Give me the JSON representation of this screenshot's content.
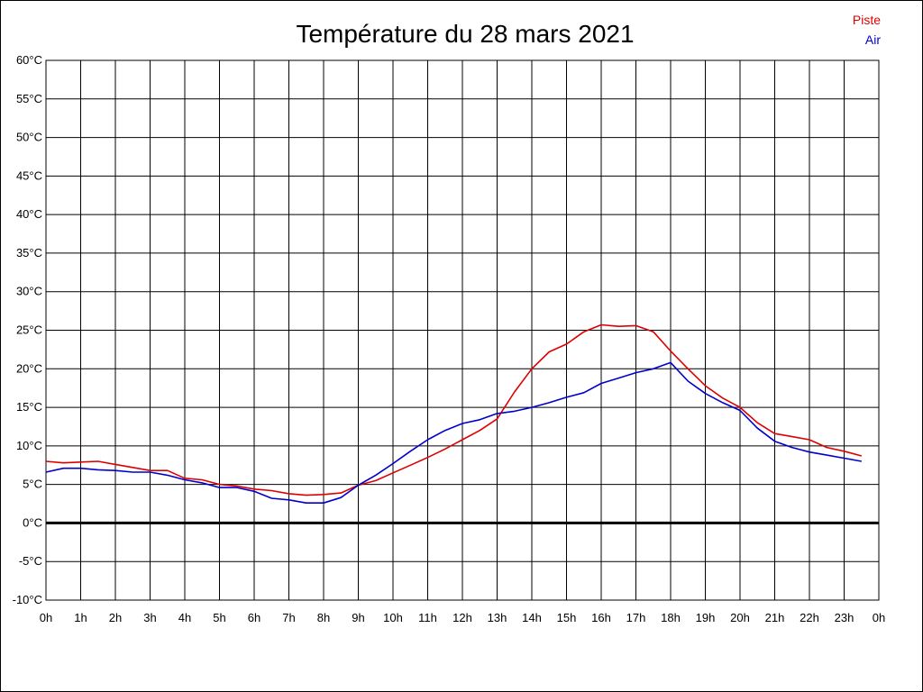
{
  "chart_data": {
    "type": "line",
    "title": "Température du 28 mars 2021",
    "xlabel": "",
    "ylabel": "",
    "x_tick_labels": [
      "0h",
      "1h",
      "2h",
      "3h",
      "4h",
      "5h",
      "6h",
      "7h",
      "8h",
      "9h",
      "10h",
      "11h",
      "12h",
      "13h",
      "14h",
      "15h",
      "16h",
      "17h",
      "18h",
      "19h",
      "20h",
      "21h",
      "22h",
      "23h",
      "0h"
    ],
    "y_tick_labels": [
      "60°C",
      "55°C",
      "50°C",
      "45°C",
      "40°C",
      "35°C",
      "30°C",
      "25°C",
      "20°C",
      "15°C",
      "10°C",
      "5°C",
      "0°C",
      "-5°C",
      "-10°C"
    ],
    "xlim": [
      0,
      24
    ],
    "ylim": [
      -10,
      60
    ],
    "grid": true,
    "zero_line": true,
    "legend_position": "top-right",
    "series": [
      {
        "name": "Piste",
        "color": "#dd0000",
        "x": [
          0,
          0.5,
          1,
          1.5,
          2,
          2.5,
          3,
          3.5,
          4,
          4.5,
          5,
          5.5,
          6,
          6.5,
          7,
          7.5,
          8,
          8.5,
          9,
          9.5,
          10,
          10.5,
          11,
          11.5,
          12,
          12.5,
          13,
          13.5,
          14,
          14.5,
          15,
          15.5,
          16,
          16.5,
          17,
          17.5,
          18,
          18.5,
          19,
          19.5,
          20,
          20.5,
          21,
          21.5,
          22,
          22.5,
          23,
          23.5
        ],
        "values": [
          8.0,
          7.8,
          7.9,
          8.0,
          7.6,
          7.2,
          6.8,
          6.8,
          5.8,
          5.6,
          5.0,
          4.8,
          4.4,
          4.2,
          3.8,
          3.6,
          3.7,
          3.9,
          4.9,
          5.5,
          6.5,
          7.5,
          8.5,
          9.6,
          10.8,
          12.0,
          13.5,
          17.0,
          20.0,
          22.2,
          23.2,
          24.8,
          25.7,
          25.5,
          25.6,
          24.8,
          22.3,
          20.0,
          17.8,
          16.2,
          15.0,
          13.0,
          11.6,
          11.2,
          10.8,
          9.8,
          9.3,
          8.7
        ]
      },
      {
        "name": "Air",
        "color": "#0000cc",
        "x": [
          0,
          0.5,
          1,
          1.5,
          2,
          2.5,
          3,
          3.5,
          4,
          4.5,
          5,
          5.5,
          6,
          6.5,
          7,
          7.5,
          8,
          8.5,
          9,
          9.5,
          10,
          10.5,
          11,
          11.5,
          12,
          12.5,
          13,
          13.5,
          14,
          14.5,
          15,
          15.5,
          16,
          16.5,
          17,
          17.5,
          18,
          18.5,
          19,
          19.5,
          20,
          20.5,
          21,
          21.5,
          22,
          22.5,
          23,
          23.5
        ],
        "values": [
          6.6,
          7.1,
          7.1,
          6.9,
          6.8,
          6.6,
          6.6,
          6.2,
          5.6,
          5.2,
          4.6,
          4.6,
          4.1,
          3.2,
          3.0,
          2.6,
          2.6,
          3.3,
          4.9,
          6.2,
          7.7,
          9.3,
          10.8,
          12.0,
          12.9,
          13.4,
          14.2,
          14.5,
          15.0,
          15.6,
          16.3,
          16.9,
          18.1,
          18.8,
          19.5,
          20.0,
          20.8,
          18.4,
          16.8,
          15.6,
          14.6,
          12.3,
          10.6,
          9.8,
          9.2,
          8.8,
          8.4,
          8.0
        ]
      }
    ]
  }
}
